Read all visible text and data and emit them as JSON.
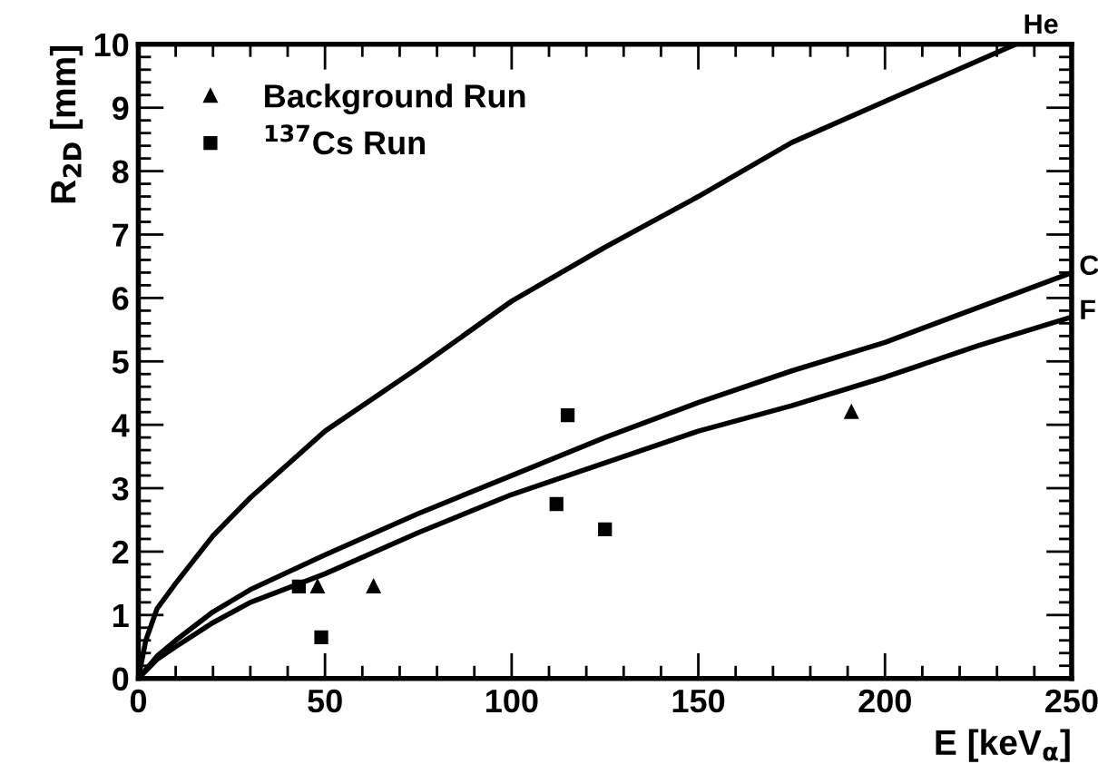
{
  "chart_data": {
    "type": "scatter",
    "xlabel": "E [keV$_{α}$]",
    "ylabel": "R$_{2D}$ [mm]",
    "xlim": [
      0,
      250
    ],
    "ylim": [
      0,
      10
    ],
    "xticks": [
      0,
      50,
      100,
      150,
      200,
      250
    ],
    "yticks": [
      0,
      1,
      2,
      3,
      4,
      5,
      6,
      7,
      8,
      9,
      10
    ],
    "grid": false,
    "legend": "top left",
    "series": [
      {
        "name": "Background Run",
        "marker": "triangle",
        "color": "#000000",
        "x": [
          48,
          63,
          191
        ],
        "values": [
          1.45,
          1.45,
          4.2
        ]
      },
      {
        "name": "$^{137}$Cs Run",
        "marker": "square",
        "color": "#000000",
        "x": [
          43,
          49,
          112,
          115,
          125
        ],
        "values": [
          1.45,
          0.65,
          2.75,
          4.15,
          2.35
        ]
      },
      {
        "name": "He",
        "type": "line",
        "marker": "none",
        "line_style": "solid",
        "color": "#000000",
        "x": [
          0,
          2,
          5,
          10,
          20,
          30,
          50,
          75,
          100,
          125,
          150,
          175,
          200,
          235
        ],
        "values": [
          0,
          0.6,
          1.1,
          1.5,
          2.25,
          2.85,
          3.9,
          4.9,
          5.95,
          6.8,
          7.6,
          8.45,
          9.1,
          10
        ]
      },
      {
        "name": "C",
        "type": "line",
        "marker": "none",
        "line_style": "solid",
        "color": "#000000",
        "x": [
          0,
          5,
          10,
          20,
          30,
          50,
          75,
          100,
          125,
          150,
          175,
          200,
          225,
          250
        ],
        "values": [
          0,
          0.35,
          0.6,
          1.05,
          1.4,
          1.95,
          2.6,
          3.2,
          3.8,
          4.35,
          4.85,
          5.3,
          5.85,
          6.4
        ]
      },
      {
        "name": "F",
        "type": "line",
        "marker": "none",
        "line_style": "solid",
        "color": "#000000",
        "x": [
          0,
          5,
          10,
          20,
          30,
          50,
          75,
          100,
          125,
          150,
          175,
          200,
          225,
          250
        ],
        "values": [
          0,
          0.3,
          0.5,
          0.88,
          1.2,
          1.65,
          2.3,
          2.9,
          3.4,
          3.9,
          4.3,
          4.75,
          5.25,
          5.7
        ]
      }
    ]
  }
}
